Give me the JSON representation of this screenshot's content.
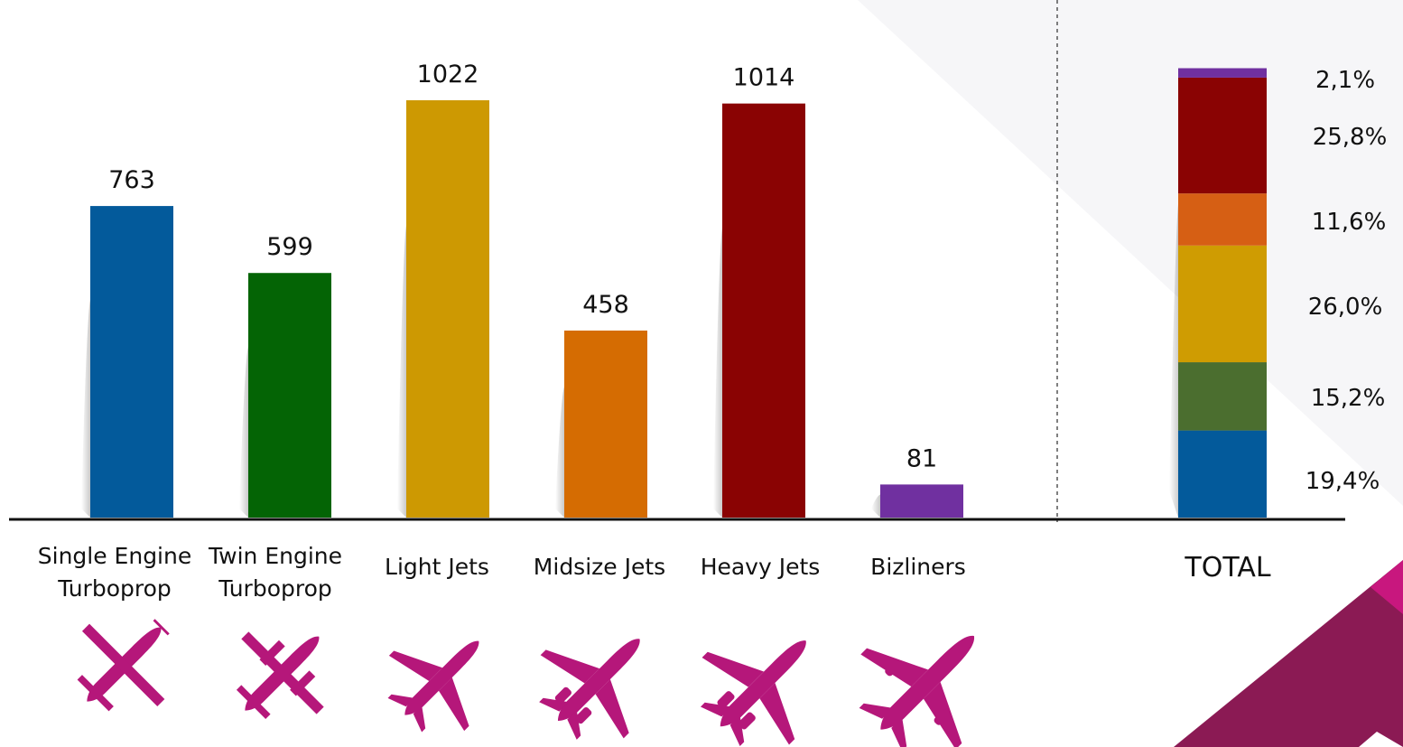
{
  "chart_data": [
    {
      "type": "bar",
      "categories": [
        [
          "Single Engine",
          "Turboprop"
        ],
        [
          "Twin Engine",
          "Turboprop"
        ],
        [
          "Light Jets"
        ],
        [
          "Midsize Jets"
        ],
        [
          "Heavy Jets"
        ],
        [
          "Bizliners"
        ]
      ],
      "values": [
        763,
        599,
        1022,
        458,
        1014,
        81
      ],
      "value_labels": [
        "763",
        "599",
        "1022",
        "458",
        "1014",
        "81"
      ],
      "colors": [
        "#035a9b",
        "#046405",
        "#cd9902",
        "#d56c02",
        "#8a0303",
        "#7030a0"
      ],
      "icons": [
        "single-engine-turboprop-plane-icon",
        "twin-engine-turboprop-plane-icon",
        "light-jet-plane-icon",
        "midsize-jet-plane-icon",
        "heavy-jet-plane-icon",
        "bizliner-plane-icon"
      ],
      "icon_color": "#b5177a",
      "ylim": [
        0,
        1200
      ],
      "grid": false
    },
    {
      "type": "stacked-bar",
      "category": "TOTAL",
      "segments": [
        {
          "value": 19.4,
          "label": "19,4%",
          "color": "#035a9b"
        },
        {
          "value": 15.2,
          "label": "15,2%",
          "color": "#4b6e2f"
        },
        {
          "value": 26.0,
          "label": "26,0%",
          "color": "#cf9c02"
        },
        {
          "value": 11.6,
          "label": "11,6%",
          "color": "#d65f14"
        },
        {
          "value": 25.8,
          "label": "25,8%",
          "color": "#8a0303"
        },
        {
          "value": 2.1,
          "label": "2,1%",
          "color": "#7030a0"
        }
      ],
      "ylim": [
        0,
        100
      ]
    }
  ],
  "colors": {
    "axis": "#111111",
    "divider": "#555555",
    "corner_dark": "#8b1a54",
    "corner_light": "#c8177e"
  }
}
